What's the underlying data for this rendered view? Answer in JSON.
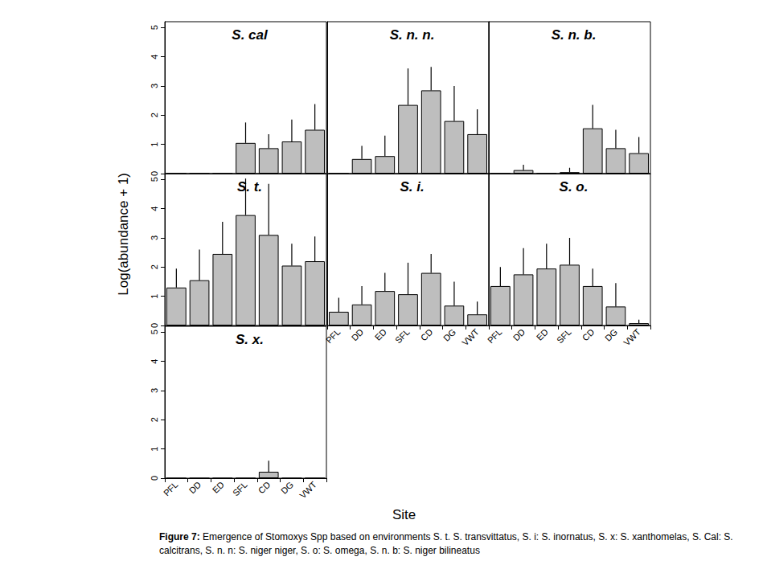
{
  "chart_data": [
    {
      "type": "bar",
      "title": "S. cal",
      "categories": [
        "PFL",
        "DD",
        "ED",
        "SFL",
        "CD",
        "DG",
        "VWT"
      ],
      "values": [
        0,
        0,
        0,
        1.05,
        0.87,
        1.1,
        1.5
      ],
      "errors": [
        0,
        0,
        0,
        0.7,
        0.48,
        0.75,
        0.88
      ],
      "color": "#bebebe",
      "ylim": [
        0,
        5.2
      ],
      "yticks": [
        0,
        1,
        2,
        3,
        4,
        5
      ],
      "grid": false,
      "tick_labels": "y"
    },
    {
      "type": "bar",
      "title": "S. n. n.",
      "categories": [
        "PFL",
        "DD",
        "ED",
        "SFL",
        "CD",
        "DG",
        "VWT"
      ],
      "values": [
        0,
        0.5,
        0.6,
        2.35,
        2.85,
        1.8,
        1.35
      ],
      "errors": [
        0,
        0.45,
        0.7,
        1.25,
        0.8,
        1.2,
        0.85
      ],
      "color": "#bebebe",
      "ylim": [
        0,
        5.2
      ],
      "yticks": [
        0,
        1,
        2,
        3,
        4,
        5
      ],
      "grid": false,
      "tick_labels": false
    },
    {
      "type": "bar",
      "title": "S. n. b.",
      "categories": [
        "PFL",
        "DD",
        "ED",
        "SFL",
        "CD",
        "DG",
        "VWT"
      ],
      "values": [
        0,
        0.12,
        0,
        0.05,
        1.55,
        0.87,
        0.7
      ],
      "errors": [
        0,
        0.18,
        0,
        0.15,
        0.8,
        0.63,
        0.55
      ],
      "color": "#bebebe",
      "ylim": [
        0,
        5.2
      ],
      "yticks": [
        0,
        1,
        2,
        3,
        4,
        5
      ],
      "grid": false,
      "tick_labels": false
    },
    {
      "type": "bar",
      "title": "S. t.",
      "categories": [
        "PFL",
        "DD",
        "ED",
        "SFL",
        "CD",
        "DG",
        "VWT"
      ],
      "values": [
        1.3,
        1.55,
        2.45,
        3.78,
        3.1,
        2.05,
        2.2
      ],
      "errors": [
        0.65,
        1.05,
        1.1,
        1.25,
        1.75,
        0.75,
        0.85
      ],
      "color": "#bebebe",
      "ylim": [
        0,
        5.2
      ],
      "yticks": [
        0,
        1,
        2,
        3,
        4,
        5
      ],
      "grid": false,
      "tick_labels": "y"
    },
    {
      "type": "bar",
      "title": "S. i.",
      "categories": [
        "PFL",
        "DD",
        "ED",
        "SFL",
        "CD",
        "DG",
        "VWT"
      ],
      "values": [
        0.47,
        0.72,
        1.18,
        1.07,
        1.8,
        0.68,
        0.38
      ],
      "errors": [
        0.48,
        0.63,
        0.62,
        1.08,
        0.65,
        0.82,
        0.44
      ],
      "color": "#bebebe",
      "ylim": [
        0,
        5.2
      ],
      "yticks": [
        0,
        1,
        2,
        3,
        4,
        5
      ],
      "grid": false,
      "tick_labels": "x"
    },
    {
      "type": "bar",
      "title": "S. o.",
      "categories": [
        "PFL",
        "DD",
        "ED",
        "SFL",
        "CD",
        "DG",
        "VWT"
      ],
      "values": [
        1.35,
        1.75,
        1.95,
        2.08,
        1.35,
        0.65,
        0.08
      ],
      "errors": [
        0.65,
        0.9,
        0.85,
        0.92,
        0.6,
        0.8,
        0.12
      ],
      "color": "#bebebe",
      "ylim": [
        0,
        5.2
      ],
      "yticks": [
        0,
        1,
        2,
        3,
        4,
        5
      ],
      "grid": false,
      "tick_labels": "x"
    },
    {
      "type": "bar",
      "title": "S. x.",
      "categories": [
        "PFL",
        "DD",
        "ED",
        "SFL",
        "CD",
        "DG",
        "VWT"
      ],
      "values": [
        0,
        0,
        0,
        0,
        0.22,
        0,
        0
      ],
      "errors": [
        0,
        0,
        0,
        0,
        0.38,
        0,
        0
      ],
      "color": "#bebebe",
      "ylim": [
        0,
        5.2
      ],
      "yticks": [
        0,
        1,
        2,
        3,
        4,
        5
      ],
      "grid": false,
      "tick_labels": true
    }
  ],
  "ylabel": "Log(abundance + 1)",
  "xlabel": "Site",
  "caption": {
    "label": "Figure 7:",
    "text": "Emergence of Stomoxys Spp based on environments  S. t. S. transvittatus, S. i:  S. inornatus, S. x: S. xanthomelas, S. Cal: S. calcitrans, S. n. n: S. niger niger, S. o: S. omega, S. n. b: S. niger bilineatus"
  }
}
